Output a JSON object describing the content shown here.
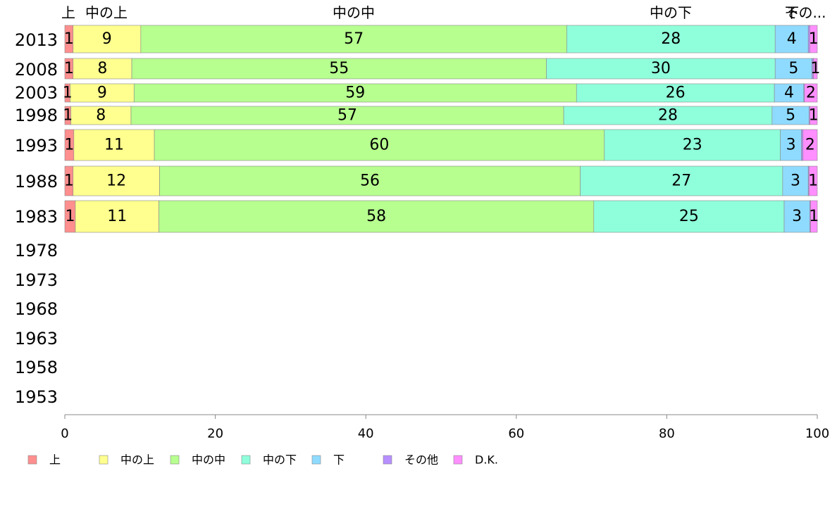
{
  "chart_data": {
    "type": "bar",
    "orientation": "horizontal",
    "stacked": true,
    "categories": [
      "2013",
      "2008",
      "2003",
      "1998",
      "1993",
      "1988",
      "1983",
      "1978",
      "1973",
      "1968",
      "1963",
      "1958",
      "1953"
    ],
    "series": [
      {
        "name": "上",
        "color": "#ff8f8f",
        "values": [
          1.1,
          1.1,
          0.7,
          0.8,
          1.2,
          1.1,
          1.4,
          null,
          null,
          null,
          null,
          null,
          null
        ],
        "labels": [
          "1",
          "1",
          "1",
          "1",
          "1",
          "1",
          "1",
          "",
          "",
          "",
          "",
          "",
          ""
        ]
      },
      {
        "name": "中の上",
        "color": "#ffff8f",
        "values": [
          9,
          7.8,
          8.5,
          8,
          10.7,
          11.5,
          11.1,
          null,
          null,
          null,
          null,
          null,
          null
        ],
        "labels": [
          "9",
          "8",
          "9",
          "8",
          "11",
          "12",
          "11",
          "",
          "",
          "",
          "",
          "",
          ""
        ]
      },
      {
        "name": "中の中",
        "color": "#b7ff8f",
        "values": [
          56.6,
          55.1,
          58.8,
          57.5,
          59.8,
          55.9,
          57.8,
          null,
          null,
          null,
          null,
          null,
          null
        ],
        "labels": [
          "57",
          "55",
          "59",
          "57",
          "60",
          "56",
          "58",
          "",
          "",
          "",
          "",
          "",
          ""
        ]
      },
      {
        "name": "中の下",
        "color": "#8fffdb",
        "values": [
          27.7,
          30.4,
          26.3,
          27.7,
          23.4,
          26.9,
          25.3,
          null,
          null,
          null,
          null,
          null,
          null
        ],
        "labels": [
          "28",
          "30",
          "26",
          "28",
          "23",
          "27",
          "25",
          "",
          "",
          "",
          "",
          "",
          ""
        ]
      },
      {
        "name": "下",
        "color": "#8fdbff",
        "values": [
          4.4,
          4.9,
          3.9,
          4.9,
          2.8,
          3.4,
          3.4,
          null,
          null,
          null,
          null,
          null,
          null
        ],
        "labels": [
          "4",
          "5",
          "4",
          "5",
          "3",
          "3",
          "3",
          "",
          "",
          "",
          "",
          "",
          ""
        ]
      },
      {
        "name": "その他",
        "color": "#b78fff",
        "values": [
          0.2,
          0.2,
          0.1,
          0.1,
          0.2,
          0.1,
          0.1,
          null,
          null,
          null,
          null,
          null,
          null
        ],
        "labels": [
          "",
          "",
          "",
          "",
          "",
          "",
          "",
          "",
          "",
          "",
          "",
          "",
          ""
        ]
      },
      {
        "name": "D.K.",
        "color": "#ff8fff",
        "values": [
          1.0,
          0.5,
          1.7,
          1.0,
          1.9,
          1.1,
          0.9,
          null,
          null,
          null,
          null,
          null,
          null
        ],
        "labels": [
          "1",
          "1",
          "2",
          "1",
          "2",
          "1",
          "1",
          "",
          "",
          "",
          "",
          "",
          ""
        ]
      }
    ],
    "top_labels": [
      "上",
      "中の上",
      "中の中",
      "中の下",
      "下",
      "その..."
    ],
    "xlim": [
      0,
      100
    ],
    "xticks": [
      "0",
      "20",
      "40",
      "60",
      "80",
      "100"
    ],
    "grid": false,
    "legend_position": "bottom",
    "title": "",
    "xlabel": "",
    "ylabel": ""
  }
}
